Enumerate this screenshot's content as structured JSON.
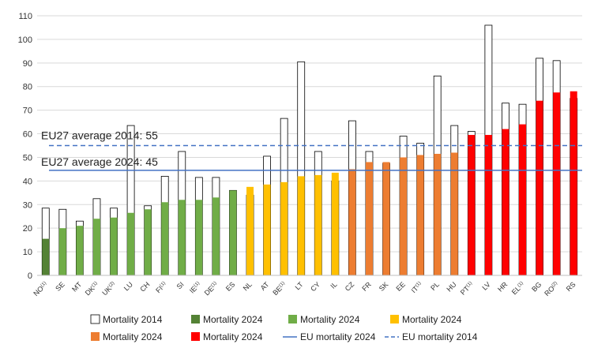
{
  "chart_data": {
    "type": "bar",
    "ylim": [
      0,
      110
    ],
    "yticks": [
      0,
      10,
      20,
      30,
      40,
      50,
      60,
      70,
      80,
      90,
      100,
      110
    ],
    "grid": "horizontal",
    "legend_position": "bottom",
    "categories": [
      {
        "label": "NO",
        "sup": "(1)"
      },
      {
        "label": "SE",
        "sup": ""
      },
      {
        "label": "MT",
        "sup": ""
      },
      {
        "label": "DK",
        "sup": "(1)"
      },
      {
        "label": "UK",
        "sup": "(2)"
      },
      {
        "label": "LU",
        "sup": ""
      },
      {
        "label": "CH",
        "sup": ""
      },
      {
        "label": "FI",
        "sup": "(1)"
      },
      {
        "label": "SI",
        "sup": ""
      },
      {
        "label": "IE",
        "sup": "(1)"
      },
      {
        "label": "DE",
        "sup": "(1)"
      },
      {
        "label": "ES",
        "sup": ""
      },
      {
        "label": "NL",
        "sup": ""
      },
      {
        "label": "AT",
        "sup": ""
      },
      {
        "label": "BE",
        "sup": "(1)"
      },
      {
        "label": "LT",
        "sup": ""
      },
      {
        "label": "CY",
        "sup": ""
      },
      {
        "label": "IL",
        "sup": ""
      },
      {
        "label": "CZ",
        "sup": ""
      },
      {
        "label": "FR",
        "sup": ""
      },
      {
        "label": "SK",
        "sup": ""
      },
      {
        "label": "EE",
        "sup": ""
      },
      {
        "label": "IT",
        "sup": "(1)"
      },
      {
        "label": "PL",
        "sup": ""
      },
      {
        "label": "HU",
        "sup": ""
      },
      {
        "label": "PT",
        "sup": "(1)"
      },
      {
        "label": "LV",
        "sup": ""
      },
      {
        "label": "HR",
        "sup": ""
      },
      {
        "label": "EL",
        "sup": "(1)"
      },
      {
        "label": "BG",
        "sup": ""
      },
      {
        "label": "RO",
        "sup": "(2)"
      },
      {
        "label": "RS",
        "sup": ""
      }
    ],
    "series": [
      {
        "name": "Mortality 2014",
        "style": "outline",
        "values": [
          28.5,
          28,
          23,
          32.5,
          28.5,
          63.5,
          29.5,
          42,
          52.5,
          41.5,
          41.5,
          36,
          34,
          50.5,
          66.5,
          90.5,
          52.5,
          40,
          65.5,
          52.5,
          47.5,
          59,
          56,
          84.5,
          63.5,
          61,
          106,
          73,
          72.5,
          92,
          91,
          75
        ]
      },
      {
        "name": "Mortality 2024",
        "style": "filled",
        "values": [
          15.5,
          20,
          21,
          24,
          24.5,
          26.5,
          28,
          31,
          32,
          32,
          33,
          36,
          37.5,
          38.5,
          39.5,
          42,
          42.5,
          43.5,
          45,
          48,
          48,
          50,
          51,
          51.5,
          52,
          59.5,
          59.5,
          62,
          64,
          74,
          77.5,
          78
        ],
        "color_groups": [
          0,
          1,
          1,
          1,
          1,
          1,
          1,
          1,
          1,
          1,
          1,
          1,
          2,
          2,
          2,
          2,
          2,
          2,
          3,
          3,
          3,
          3,
          3,
          3,
          3,
          4,
          4,
          4,
          4,
          4,
          4,
          4
        ]
      }
    ],
    "group_colors": [
      "#548235",
      "#70ad47",
      "#ffc000",
      "#ed7d31",
      "#ff0000"
    ],
    "reference_lines": [
      {
        "name": "EU mortality 2024",
        "value": 44.5,
        "style": "solid",
        "color": "#4472c4",
        "label": "EU27 average 2024: 45"
      },
      {
        "name": "EU mortality 2014",
        "value": 55,
        "style": "dashed",
        "color": "#4472c4",
        "label": "EU27 average 2014: 55"
      }
    ],
    "legend": [
      {
        "type": "outline",
        "label": "Mortality 2014"
      },
      {
        "type": "fill",
        "color": "#548235",
        "label": "Mortality 2024"
      },
      {
        "type": "fill",
        "color": "#70ad47",
        "label": "Mortality 2024"
      },
      {
        "type": "fill",
        "color": "#ffc000",
        "label": "Mortality 2024"
      },
      {
        "type": "fill",
        "color": "#ed7d31",
        "label": "Mortality 2024"
      },
      {
        "type": "fill",
        "color": "#ff0000",
        "label": "Mortality 2024"
      },
      {
        "type": "line",
        "style": "solid",
        "color": "#4472c4",
        "label": "EU mortality 2024"
      },
      {
        "type": "line",
        "style": "dashed",
        "color": "#4472c4",
        "label": "EU mortality 2014"
      }
    ]
  }
}
